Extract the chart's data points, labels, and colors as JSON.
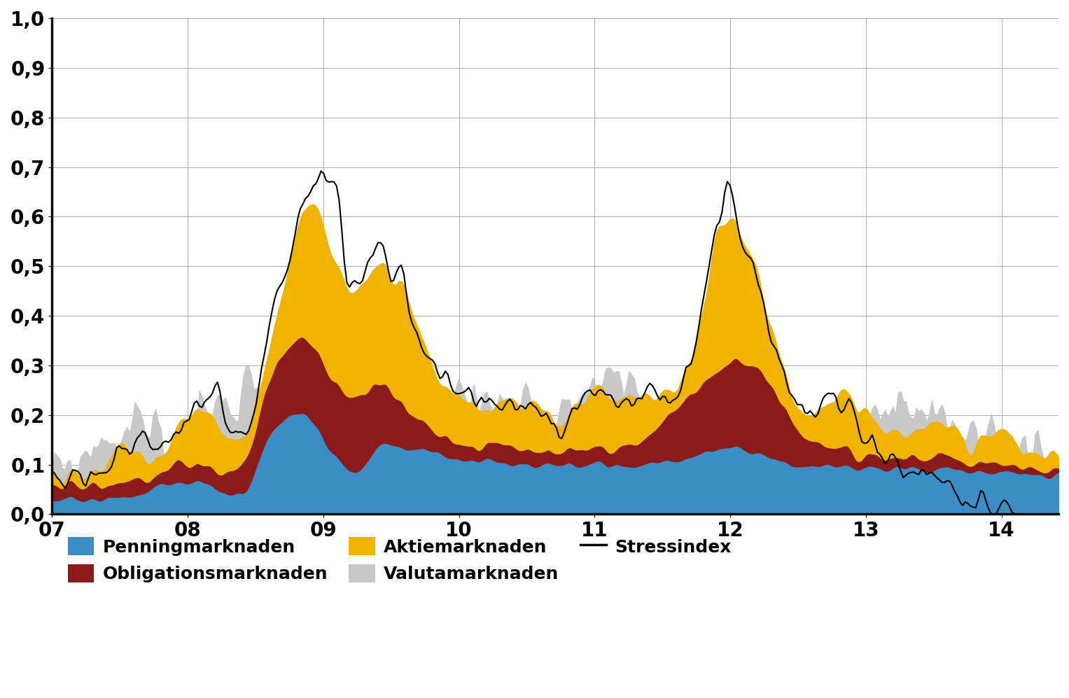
{
  "title": "",
  "xlabel": "",
  "ylabel": "",
  "xlim_start": 2007.0,
  "xlim_end": 2014.42,
  "ylim": [
    0.0,
    1.0
  ],
  "yticks": [
    0.0,
    0.1,
    0.2,
    0.3,
    0.4,
    0.5,
    0.6,
    0.7,
    0.8,
    0.9,
    1.0
  ],
  "ytick_labels": [
    "0,0",
    "0,1",
    "0,2",
    "0,3",
    "0,4",
    "0,5",
    "0,6",
    "0,7",
    "0,8",
    "0,9",
    "1,0"
  ],
  "xtick_positions": [
    2007,
    2008,
    2009,
    2010,
    2011,
    2012,
    2013,
    2014
  ],
  "xtick_labels": [
    "07",
    "08",
    "09",
    "10",
    "11",
    "12",
    "13",
    "14"
  ],
  "color_penning": "#3A8DC5",
  "color_obligationer": "#8B1A1A",
  "color_aktie": "#F0B400",
  "color_valuta": "#C8C8C8",
  "color_stress": "#000000",
  "legend_labels": [
    "Penningmarknaden",
    "Obligationsmarknaden",
    "Aktiemarknaden",
    "Valutamarknaden",
    "Stressindex"
  ],
  "background_color": "#FFFFFF",
  "grid_color": "#AAAAAA"
}
